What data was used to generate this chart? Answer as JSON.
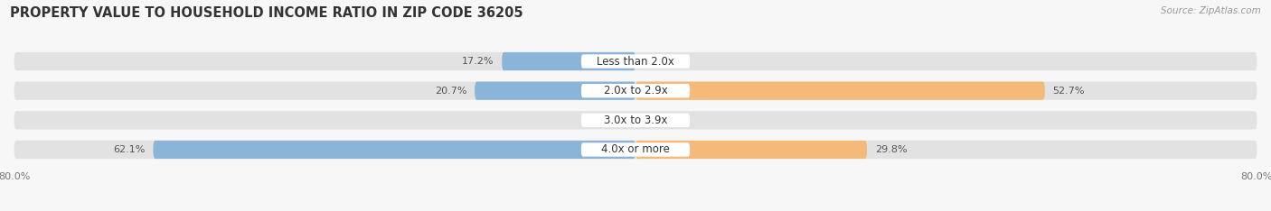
{
  "title": "PROPERTY VALUE TO HOUSEHOLD INCOME RATIO IN ZIP CODE 36205",
  "source": "Source: ZipAtlas.com",
  "categories": [
    "Less than 2.0x",
    "2.0x to 2.9x",
    "3.0x to 3.9x",
    "4.0x or more"
  ],
  "without_mortgage": [
    17.2,
    20.7,
    0.0,
    62.1
  ],
  "with_mortgage": [
    0.0,
    52.7,
    0.0,
    29.8
  ],
  "color_without": "#8ab4d8",
  "color_with": "#f5ba7a",
  "background_bar": "#e2e2e2",
  "background_fig": "#f7f7f7",
  "xlim_left": -80.0,
  "xlim_right": 80.0,
  "xtick_label_left": "80.0%",
  "xtick_label_right": "80.0%",
  "title_fontsize": 10.5,
  "label_fontsize": 8.5,
  "value_fontsize": 8,
  "bar_height": 0.62,
  "bar_gap": 0.15,
  "n_rows": 4
}
